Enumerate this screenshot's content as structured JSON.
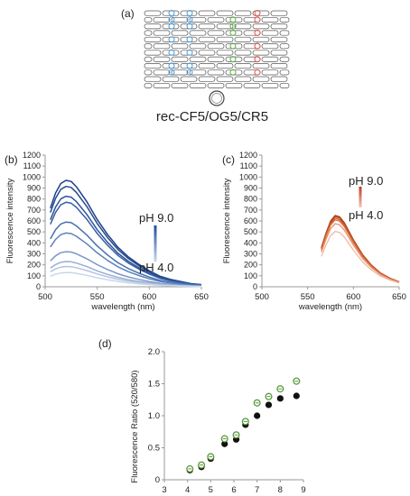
{
  "panels": {
    "a": {
      "letter": "(a)",
      "caption": "rec-CF5/OG5/CR5",
      "marker_colors": [
        "#4a9ad8",
        "#5aa84a",
        "#e0504a"
      ]
    },
    "b": {
      "letter": "(b)"
    },
    "c": {
      "letter": "(c)"
    },
    "d": {
      "letter": "(d)"
    }
  },
  "chart_data": [
    {
      "id": "b",
      "type": "line",
      "xlabel": "wavelength (nm)",
      "ylabel": "Fluorescence intensity",
      "xlim": [
        500,
        650
      ],
      "ylim": [
        0,
        1200
      ],
      "xticks": [
        500,
        550,
        600,
        650
      ],
      "yticks": [
        0,
        100,
        200,
        300,
        400,
        500,
        600,
        700,
        800,
        900,
        1000,
        1100,
        1200
      ],
      "annotations": [
        "pH 9.0",
        "pH 4.0"
      ],
      "arrow_colors": [
        "#1f4e9b",
        "#c9d9ee"
      ],
      "x": [
        505,
        510,
        515,
        520,
        525,
        530,
        540,
        550,
        560,
        570,
        580,
        590,
        600,
        610,
        620,
        630,
        640,
        650
      ],
      "series": [
        {
          "color": "#1e3f8a",
          "peak": 970
        },
        {
          "color": "#25498f",
          "peak": 915
        },
        {
          "color": "#2d539a",
          "peak": 825
        },
        {
          "color": "#3660a5",
          "peak": 770
        },
        {
          "color": "#4470b0",
          "peak": 590
        },
        {
          "color": "#5a82bb",
          "peak": 490
        },
        {
          "color": "#7a97c8",
          "peak": 320
        },
        {
          "color": "#98afd4",
          "peak": 230
        },
        {
          "color": "#b2c4e0",
          "peak": 185
        },
        {
          "color": "#c9d6ea",
          "peak": 130
        }
      ],
      "profile": [
        0.74,
        0.88,
        0.97,
        1.0,
        0.99,
        0.94,
        0.8,
        0.63,
        0.49,
        0.37,
        0.28,
        0.21,
        0.15,
        0.1,
        0.07,
        0.05,
        0.03,
        0.02
      ]
    },
    {
      "id": "c",
      "type": "line",
      "xlabel": "wavelength (nm)",
      "ylabel": "Fluorescence intensity",
      "xlim": [
        500,
        650
      ],
      "ylim": [
        0,
        1200
      ],
      "xticks": [
        500,
        550,
        600,
        650
      ],
      "yticks": [
        0,
        100,
        200,
        300,
        400,
        500,
        600,
        700,
        800,
        900,
        1000,
        1100,
        1200
      ],
      "annotations": [
        "pH 9.0",
        "pH 4.0"
      ],
      "arrow_colors": [
        "#c0392b",
        "#f2c7b8"
      ],
      "x": [
        565,
        570,
        575,
        580,
        585,
        590,
        595,
        600,
        610,
        620,
        630,
        640,
        650
      ],
      "series": [
        {
          "color": "#a83a14",
          "peak": 650
        },
        {
          "color": "#b84a1e",
          "peak": 640
        },
        {
          "color": "#c85a2a",
          "peak": 625
        },
        {
          "color": "#d87040",
          "peak": 610
        },
        {
          "color": "#e89070",
          "peak": 575
        },
        {
          "color": "#f2b8a0",
          "peak": 505
        }
      ],
      "profile": [
        0.55,
        0.75,
        0.92,
        1.0,
        0.98,
        0.9,
        0.78,
        0.66,
        0.45,
        0.3,
        0.19,
        0.12,
        0.07
      ]
    },
    {
      "id": "d",
      "type": "scatter",
      "xlabel": "",
      "ylabel": "Fluorescence Ratio (520/580)",
      "xlim": [
        3,
        9
      ],
      "ylim": [
        0,
        2.0
      ],
      "xticks": [
        3,
        4,
        5,
        6,
        7,
        8,
        9
      ],
      "yticks": [
        0,
        0.5,
        1.0,
        1.5,
        2.0
      ],
      "ytick_labels": [
        "0",
        "0.5",
        "1.0",
        "1.5",
        "2.0"
      ],
      "series": [
        {
          "style": "filled",
          "color": "#111111",
          "x": [
            4.1,
            4.6,
            5.0,
            5.6,
            6.1,
            6.5,
            7.0,
            7.5,
            8.0,
            8.7
          ],
          "y": [
            0.15,
            0.2,
            0.33,
            0.56,
            0.63,
            0.86,
            1.0,
            1.17,
            1.27,
            1.31
          ]
        },
        {
          "style": "open",
          "color": "#5a9a3a",
          "x": [
            4.1,
            4.6,
            5.0,
            5.6,
            6.1,
            6.5,
            7.0,
            7.5,
            8.0,
            8.7
          ],
          "y": [
            0.17,
            0.23,
            0.36,
            0.64,
            0.7,
            0.91,
            1.2,
            1.3,
            1.42,
            1.54
          ]
        }
      ]
    }
  ]
}
